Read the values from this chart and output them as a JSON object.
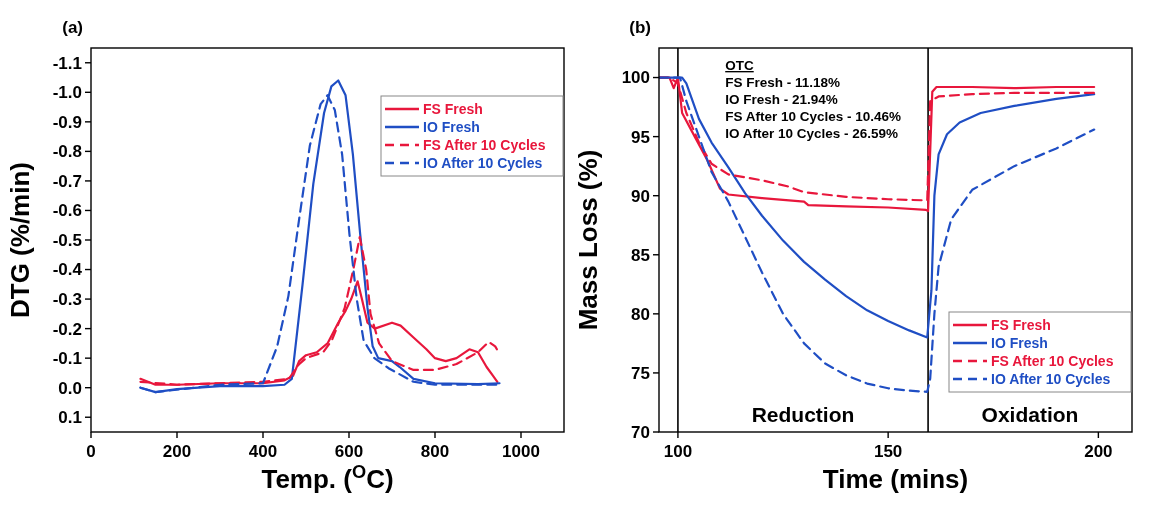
{
  "chart_data": [
    {
      "type": "line",
      "title": "(a)",
      "xlabel": "Temp. ($^{O}$C)",
      "ylabel": "DTG (%/min)",
      "xlim": [
        0,
        1100
      ],
      "xticks": [
        0,
        200,
        400,
        600,
        800,
        1000
      ],
      "ylim": [
        0.15,
        -1.15
      ],
      "yticks": [
        0.1,
        {
          "value": 0,
          "label": "0.0"
        },
        -0.1,
        -0.2,
        -0.3,
        -0.4,
        -0.5,
        -0.6,
        -0.7,
        -0.8,
        -0.9,
        {
          "value": -1,
          "label": "-1.0"
        },
        -1.1
      ],
      "legend": "top right",
      "grid": false,
      "series": [
        {
          "name": "FS Fresh",
          "color": "#e8173c",
          "line_style": "solid",
          "x": [
            115,
            150,
            200,
            300,
            400,
            450,
            470,
            484,
            500,
            525,
            550,
            575,
            592,
            605,
            620,
            630,
            643,
            660,
            700,
            720,
            750,
            780,
            800,
            825,
            850,
            880,
            900,
            920,
            935,
            945
          ],
          "values": [
            -0.03,
            -0.01,
            -0.01,
            -0.015,
            -0.015,
            -0.025,
            -0.04,
            -0.09,
            -0.11,
            -0.12,
            -0.15,
            -0.22,
            -0.26,
            -0.3,
            -0.36,
            -0.3,
            -0.22,
            -0.2,
            -0.22,
            -0.21,
            -0.17,
            -0.13,
            -0.1,
            -0.09,
            -0.1,
            -0.13,
            -0.12,
            -0.07,
            -0.04,
            -0.02
          ]
        },
        {
          "name": "IO Fresh",
          "color": "#1f4ec4",
          "line_style": "solid",
          "x": [
            115,
            150,
            200,
            300,
            400,
            450,
            467,
            492,
            517,
            542,
            559,
            575,
            592,
            609,
            626,
            643,
            655,
            668,
            700,
            718,
            750,
            800,
            900,
            950
          ],
          "values": [
            0,
            0.015,
            0.005,
            -0.005,
            -0.005,
            -0.01,
            -0.03,
            -0.35,
            -0.69,
            -0.93,
            -1.02,
            -1.04,
            -0.99,
            -0.79,
            -0.52,
            -0.27,
            -0.14,
            -0.1,
            -0.09,
            -0.07,
            -0.03,
            -0.015,
            -0.012,
            -0.015
          ]
        },
        {
          "name": "FS After 10 Cycles",
          "color": "#e8173c",
          "line_style": "dashed",
          "x": [
            115,
            200,
            300,
            400,
            460,
            484,
            500,
            540,
            560,
            590,
            610,
            625,
            640,
            650,
            670,
            700,
            750,
            800,
            850,
            900,
            925,
            940,
            948
          ],
          "values": [
            -0.02,
            -0.01,
            -0.015,
            -0.02,
            -0.03,
            -0.08,
            -0.1,
            -0.12,
            -0.16,
            -0.27,
            -0.4,
            -0.51,
            -0.4,
            -0.25,
            -0.15,
            -0.09,
            -0.06,
            -0.06,
            -0.08,
            -0.12,
            -0.155,
            -0.14,
            -0.12
          ]
        },
        {
          "name": "IO After 10 Cycles",
          "color": "#1f4ec4",
          "line_style": "dashed",
          "x": [
            115,
            150,
            300,
            400,
            433,
            459,
            484,
            509,
            534,
            550,
            567,
            584,
            601,
            618,
            634,
            659,
            693,
            750,
            800,
            950
          ],
          "values": [
            0,
            0.015,
            -0.01,
            -0.015,
            -0.14,
            -0.31,
            -0.57,
            -0.82,
            -0.96,
            -0.99,
            -0.94,
            -0.79,
            -0.52,
            -0.3,
            -0.16,
            -0.1,
            -0.065,
            -0.02,
            -0.01,
            -0.01
          ]
        }
      ]
    },
    {
      "type": "line",
      "title": "(b)",
      "xlabel": "Time (mins)",
      "ylabel": "Mass Loss (%)",
      "xlim": [
        95.5,
        208
      ],
      "xticks": [
        100,
        150,
        200
      ],
      "ylim": [
        70,
        102.5
      ],
      "yticks": [
        70,
        75,
        80,
        85,
        90,
        95,
        100
      ],
      "legend": "bottom right",
      "grid": false,
      "ref_lines": [
        {
          "axis": "x",
          "value": 100,
          "color": "#000000"
        },
        {
          "axis": "x",
          "value": 159.5,
          "color": "#000000"
        }
      ],
      "annotations": [
        "OTC",
        "FS Fresh - 11.18%",
        "IO Fresh - 21.94%",
        "FS After 10 Cycles - 10.46%",
        "IO After 10 Cycles - 26.59%",
        "Reduction",
        "Oxidation"
      ],
      "series": [
        {
          "name": "FS Fresh",
          "color": "#e8173c",
          "line_style": "solid",
          "x": [
            95.5,
            98,
            99,
            100,
            101,
            104,
            107,
            110,
            112,
            120,
            130,
            131,
            140,
            150,
            159,
            159.5,
            160.5,
            161.5,
            170,
            180,
            190,
            199
          ],
          "values": [
            100,
            100,
            99.1,
            100,
            97,
            95,
            93,
            90.6,
            90.1,
            89.8,
            89.5,
            89.2,
            89.1,
            89,
            88.8,
            88.7,
            98.8,
            99.2,
            99.2,
            99.1,
            99.2,
            99.2
          ]
        },
        {
          "name": "IO Fresh",
          "color": "#1f4ec4",
          "line_style": "solid",
          "x": [
            95.5,
            100,
            101,
            102,
            105,
            108,
            112,
            116,
            120,
            125,
            130,
            135,
            140,
            145,
            150,
            155,
            159.3,
            160.3,
            161,
            162,
            164,
            167,
            172,
            180,
            190,
            199
          ],
          "values": [
            100,
            100,
            100,
            99.5,
            96.5,
            94.5,
            92.4,
            90.2,
            88.3,
            86.2,
            84.4,
            82.9,
            81.5,
            80.3,
            79.4,
            78.6,
            78,
            82,
            90,
            93.5,
            95.2,
            96.2,
            97,
            97.6,
            98.2,
            98.6
          ]
        },
        {
          "name": "FS After 10 Cycles",
          "color": "#e8173c",
          "line_style": "dashed",
          "x": [
            95.5,
            98,
            100,
            102,
            105,
            108,
            112,
            120,
            126,
            130,
            140,
            150,
            159.3,
            160,
            162,
            170,
            180,
            199
          ],
          "values": [
            100,
            100,
            99.5,
            97,
            94.5,
            92.7,
            91.8,
            91.3,
            90.8,
            90.3,
            89.9,
            89.7,
            89.6,
            98,
            98.4,
            98.6,
            98.7,
            98.7
          ]
        },
        {
          "name": "IO After 10 Cycles",
          "color": "#1f4ec4",
          "line_style": "dashed",
          "x": [
            95.5,
            100,
            100.5,
            102,
            105,
            108,
            112,
            116,
            120,
            125,
            130,
            135,
            140,
            145,
            150,
            155,
            159.3,
            160,
            161,
            162,
            165,
            170,
            180,
            190,
            199
          ],
          "values": [
            100,
            100,
            100,
            98,
            95,
            92,
            89.5,
            86.5,
            83.5,
            80,
            77.5,
            75.8,
            74.8,
            74.1,
            73.7,
            73.5,
            73.4,
            74.5,
            80,
            84,
            88,
            90.5,
            92.5,
            94,
            95.6
          ]
        }
      ]
    }
  ]
}
